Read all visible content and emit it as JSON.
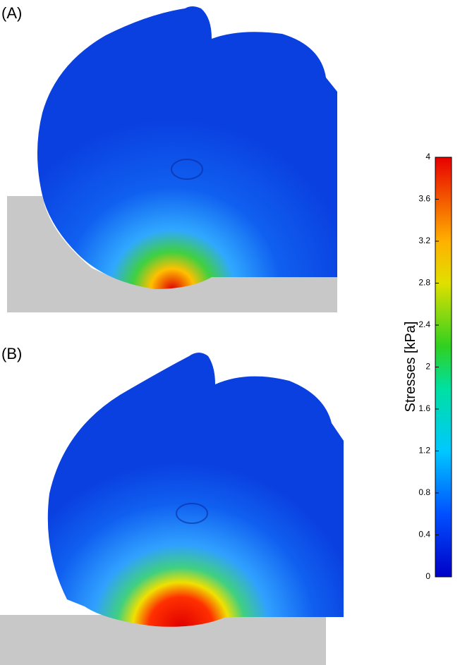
{
  "panels": [
    {
      "label": "(A)"
    },
    {
      "label": "(B)"
    }
  ],
  "colorbar": {
    "label": "Stresses [kPa]",
    "range": [
      0,
      4
    ],
    "ticks": [
      0,
      0.4,
      0.8,
      1.2,
      1.6,
      2,
      2.4,
      2.8,
      3.2,
      3.6,
      4
    ]
  }
}
